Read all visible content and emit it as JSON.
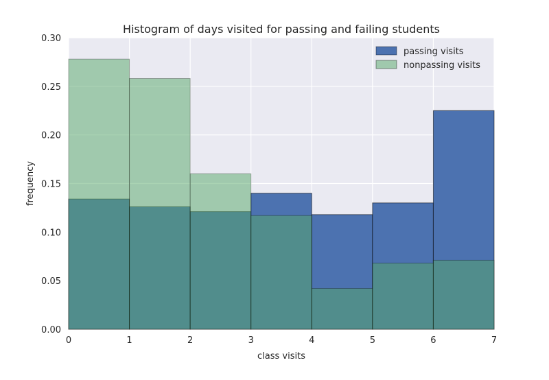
{
  "chart_data": {
    "type": "bar",
    "subtype": "overlaid-histogram",
    "title": "Histogram of days visited for passing and failing students",
    "xlabel": "class visits",
    "ylabel": "frequency",
    "xlim": [
      0,
      7
    ],
    "ylim": [
      0,
      0.3
    ],
    "bin_edges": [
      0,
      1,
      2,
      3,
      4,
      5,
      6,
      7
    ],
    "x_ticks": [
      "0",
      "1",
      "2",
      "3",
      "4",
      "5",
      "6",
      "7"
    ],
    "y_ticks": [
      "0.00",
      "0.05",
      "0.10",
      "0.15",
      "0.20",
      "0.25",
      "0.30"
    ],
    "grid": true,
    "background": "#EAEAF2",
    "legend_position": "top-right",
    "series": [
      {
        "name": "passing visits",
        "color": "#4C72B0",
        "values": [
          0.134,
          0.126,
          0.121,
          0.14,
          0.118,
          0.13,
          0.225
        ]
      },
      {
        "name": "nonpassing visits",
        "color": "#55A868",
        "values": [
          0.278,
          0.258,
          0.16,
          0.117,
          0.042,
          0.068,
          0.071
        ]
      }
    ]
  }
}
